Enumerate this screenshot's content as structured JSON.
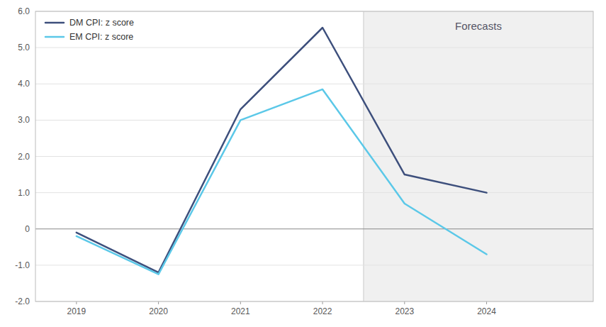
{
  "chart_data": {
    "type": "line",
    "x": [
      2019,
      2020,
      2021,
      2022,
      2023,
      2024
    ],
    "series": [
      {
        "name": "DM CPI: z score",
        "color": "#3d4f7c",
        "values": [
          -0.1,
          -1.2,
          3.3,
          5.55,
          1.5,
          1.0
        ]
      },
      {
        "name": "EM CPI: z score",
        "color": "#5bc8e8",
        "values": [
          -0.2,
          -1.25,
          3.0,
          3.85,
          0.7,
          -0.7
        ]
      }
    ],
    "xlim": [
      2018.5,
      2025.3
    ],
    "xticks": [
      2019,
      2020,
      2021,
      2022,
      2023,
      2024
    ],
    "ylim": [
      -2.0,
      6.0
    ],
    "yticks": [
      {
        "value": -2.0,
        "label": "-2.0"
      },
      {
        "value": -1.0,
        "label": "-1.0"
      },
      0,
      {
        "value": 1.0,
        "label": "1.0"
      },
      {
        "value": 2.0,
        "label": "2.0"
      },
      {
        "value": 3.0,
        "label": "3.0"
      },
      {
        "value": 4.0,
        "label": "4.0"
      },
      {
        "value": 5.0,
        "label": "5.0"
      },
      {
        "value": 6.0,
        "label": "6.0"
      }
    ],
    "grid": true,
    "legend": "upper left",
    "forecast": {
      "start": 2022.5,
      "label": "Forecasts"
    }
  }
}
